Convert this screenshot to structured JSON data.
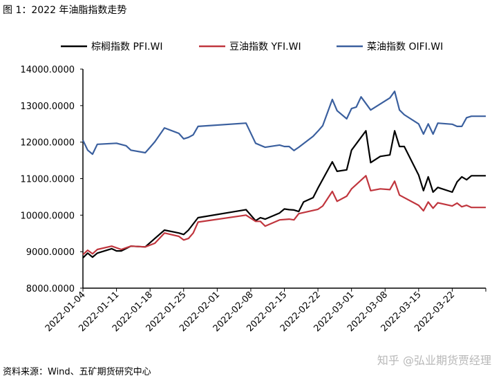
{
  "title": "图 1：2022 年油脂指数走势",
  "source": "资料来源：Wind、五矿期货研究中心",
  "watermark": "知乎 @弘业期货贾经理",
  "chart_data": {
    "type": "line",
    "title": "图 1：2022 年油脂指数走势",
    "x_unit": "days since 2022-01-04",
    "start_date": "2022-01-04",
    "xlim": [
      0,
      84
    ],
    "ylim": [
      8000,
      14000
    ],
    "yticks": [
      8000,
      9000,
      10000,
      11000,
      12000,
      13000,
      14000
    ],
    "ytick_labels": [
      "8000.0000",
      "9000.0000",
      "10000.0000",
      "11000.0000",
      "12000.0000",
      "13000.0000",
      "14000.0000"
    ],
    "xticks": [
      0,
      7,
      14,
      21,
      28,
      35,
      42,
      49,
      56,
      63,
      70,
      77
    ],
    "xtick_labels": [
      "2022-01-04",
      "2022-01-11",
      "2022-01-18",
      "2022-01-25",
      "2022-02-01",
      "2022-02-08",
      "2022-02-15",
      "2022-02-22",
      "2022-03-01",
      "2022-03-08",
      "2022-03-15",
      "2022-03-22"
    ],
    "grid": false,
    "legend_position": "top",
    "series": [
      {
        "name": "棕榈指数 PFI.WI",
        "color": "#000000",
        "points": [
          [
            0,
            8830
          ],
          [
            1,
            8960
          ],
          [
            2,
            8850
          ],
          [
            3,
            8960
          ],
          [
            6,
            9080
          ],
          [
            7,
            9020
          ],
          [
            8,
            9020
          ],
          [
            10,
            9150
          ],
          [
            13,
            9130
          ],
          [
            15,
            9360
          ],
          [
            17,
            9590
          ],
          [
            20,
            9510
          ],
          [
            21,
            9470
          ],
          [
            22,
            9590
          ],
          [
            24,
            9930
          ],
          [
            34,
            10150
          ],
          [
            36,
            9850
          ],
          [
            37,
            9930
          ],
          [
            38,
            9890
          ],
          [
            41,
            10060
          ],
          [
            42,
            10170
          ],
          [
            43,
            10150
          ],
          [
            44,
            10140
          ],
          [
            45,
            10100
          ],
          [
            46,
            10360
          ],
          [
            48,
            10480
          ],
          [
            49,
            10740
          ],
          [
            52,
            11460
          ],
          [
            53,
            11200
          ],
          [
            55,
            11240
          ],
          [
            56,
            11780
          ],
          [
            59,
            12310
          ],
          [
            60,
            11440
          ],
          [
            62,
            11610
          ],
          [
            64,
            11650
          ],
          [
            65,
            12310
          ],
          [
            66,
            11880
          ],
          [
            67,
            11880
          ],
          [
            70,
            11100
          ],
          [
            71,
            10670
          ],
          [
            72,
            11050
          ],
          [
            73,
            10630
          ],
          [
            74,
            10760
          ],
          [
            77,
            10630
          ],
          [
            78,
            10910
          ],
          [
            79,
            11050
          ],
          [
            80,
            10970
          ],
          [
            81,
            11080
          ],
          [
            84,
            11080
          ]
        ]
      },
      {
        "name": "豆油指数 YFI.WI",
        "color": "#c0353d",
        "points": [
          [
            0,
            8920
          ],
          [
            1,
            9040
          ],
          [
            2,
            8940
          ],
          [
            3,
            9060
          ],
          [
            6,
            9150
          ],
          [
            8,
            9060
          ],
          [
            10,
            9150
          ],
          [
            13,
            9130
          ],
          [
            15,
            9230
          ],
          [
            17,
            9510
          ],
          [
            20,
            9420
          ],
          [
            21,
            9320
          ],
          [
            22,
            9360
          ],
          [
            23,
            9510
          ],
          [
            24,
            9810
          ],
          [
            34,
            10000
          ],
          [
            36,
            9830
          ],
          [
            37,
            9830
          ],
          [
            38,
            9700
          ],
          [
            41,
            9870
          ],
          [
            43,
            9890
          ],
          [
            44,
            9870
          ],
          [
            45,
            10040
          ],
          [
            49,
            10160
          ],
          [
            50,
            10250
          ],
          [
            52,
            10650
          ],
          [
            53,
            10380
          ],
          [
            55,
            10520
          ],
          [
            56,
            10720
          ],
          [
            59,
            11080
          ],
          [
            60,
            10670
          ],
          [
            62,
            10720
          ],
          [
            64,
            10700
          ],
          [
            65,
            10930
          ],
          [
            66,
            10550
          ],
          [
            70,
            10270
          ],
          [
            71,
            10120
          ],
          [
            72,
            10360
          ],
          [
            73,
            10190
          ],
          [
            74,
            10340
          ],
          [
            77,
            10250
          ],
          [
            78,
            10330
          ],
          [
            79,
            10230
          ],
          [
            80,
            10270
          ],
          [
            81,
            10210
          ],
          [
            84,
            10210
          ]
        ]
      },
      {
        "name": "菜油指数 OIFI.WI",
        "color": "#3a5f9e",
        "points": [
          [
            0,
            12050
          ],
          [
            1,
            11780
          ],
          [
            2,
            11670
          ],
          [
            3,
            11940
          ],
          [
            7,
            11970
          ],
          [
            9,
            11900
          ],
          [
            10,
            11780
          ],
          [
            13,
            11710
          ],
          [
            14,
            11860
          ],
          [
            15,
            12010
          ],
          [
            17,
            12390
          ],
          [
            20,
            12240
          ],
          [
            21,
            12090
          ],
          [
            22,
            12130
          ],
          [
            23,
            12200
          ],
          [
            24,
            12430
          ],
          [
            34,
            12520
          ],
          [
            36,
            11970
          ],
          [
            38,
            11860
          ],
          [
            41,
            11920
          ],
          [
            42,
            11880
          ],
          [
            43,
            11880
          ],
          [
            44,
            11770
          ],
          [
            45,
            11860
          ],
          [
            48,
            12160
          ],
          [
            49,
            12300
          ],
          [
            50,
            12450
          ],
          [
            52,
            13170
          ],
          [
            53,
            12860
          ],
          [
            55,
            12640
          ],
          [
            56,
            12920
          ],
          [
            57,
            12960
          ],
          [
            58,
            13240
          ],
          [
            60,
            12880
          ],
          [
            64,
            13210
          ],
          [
            65,
            13390
          ],
          [
            66,
            12880
          ],
          [
            67,
            12750
          ],
          [
            70,
            12500
          ],
          [
            71,
            12220
          ],
          [
            72,
            12500
          ],
          [
            73,
            12220
          ],
          [
            74,
            12520
          ],
          [
            77,
            12490
          ],
          [
            78,
            12430
          ],
          [
            79,
            12430
          ],
          [
            80,
            12670
          ],
          [
            81,
            12710
          ],
          [
            84,
            12710
          ]
        ]
      }
    ]
  }
}
